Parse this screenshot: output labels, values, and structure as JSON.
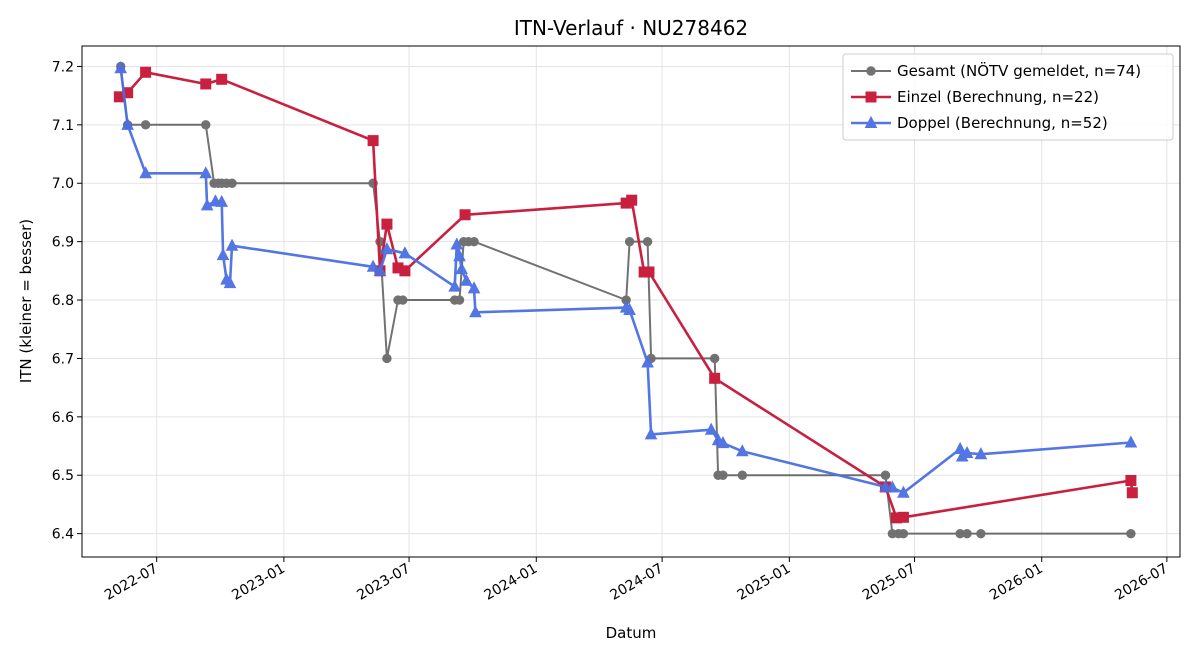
{
  "chart_data": {
    "type": "line",
    "title": "ITN-Verlauf · NU278462",
    "xlabel": "Datum",
    "ylabel": "ITN  (kleiner = besser)",
    "x_axis": "date",
    "xlim": [
      "2022-03-15",
      "2026-07-20"
    ],
    "ylim": [
      6.36,
      7.235
    ],
    "x_ticks": [
      "2022-07-01",
      "2023-01-01",
      "2023-07-01",
      "2024-01-01",
      "2024-07-01",
      "2025-01-01",
      "2025-07-01",
      "2026-01-01",
      "2026-07-01"
    ],
    "x_tick_labels": [
      "2022-07",
      "2023-01",
      "2023-07",
      "2024-01",
      "2024-07",
      "2025-01",
      "2025-07",
      "2026-01",
      "2026-07"
    ],
    "y_ticks": [
      6.4,
      6.5,
      6.6,
      6.7,
      6.8,
      6.9,
      7.0,
      7.1,
      7.2
    ],
    "y_tick_labels": [
      "6.4",
      "6.5",
      "6.6",
      "6.7",
      "6.8",
      "6.9",
      "7.0",
      "7.1",
      "7.2"
    ],
    "grid": true,
    "legend_position": "top-right",
    "series": [
      {
        "name": "Gesamt (NÖTV gemeldet, n=74)",
        "color": "#444444",
        "marker": "circle",
        "points": [
          [
            "2022-05-10",
            7.2
          ],
          [
            "2022-05-20",
            7.1
          ],
          [
            "2022-06-15",
            7.1
          ],
          [
            "2022-09-10",
            7.1
          ],
          [
            "2022-09-22",
            7.0
          ],
          [
            "2022-09-28",
            7.0
          ],
          [
            "2022-10-03",
            7.0
          ],
          [
            "2022-10-10",
            7.0
          ],
          [
            "2022-10-18",
            7.0
          ],
          [
            "2023-05-10",
            7.0
          ],
          [
            "2023-05-20",
            6.9
          ],
          [
            "2023-05-30",
            6.7
          ],
          [
            "2023-06-15",
            6.8
          ],
          [
            "2023-06-22",
            6.8
          ],
          [
            "2023-09-05",
            6.8
          ],
          [
            "2023-09-12",
            6.8
          ],
          [
            "2023-09-18",
            6.9
          ],
          [
            "2023-09-25",
            6.9
          ],
          [
            "2023-10-03",
            6.9
          ],
          [
            "2024-05-10",
            6.8
          ],
          [
            "2024-05-15",
            6.9
          ],
          [
            "2024-06-10",
            6.9
          ],
          [
            "2024-06-15",
            6.7
          ],
          [
            "2024-09-15",
            6.7
          ],
          [
            "2024-09-20",
            6.5
          ],
          [
            "2024-09-27",
            6.5
          ],
          [
            "2024-10-25",
            6.5
          ],
          [
            "2025-05-20",
            6.5
          ],
          [
            "2025-05-30",
            6.4
          ],
          [
            "2025-06-08",
            6.4
          ],
          [
            "2025-06-15",
            6.4
          ],
          [
            "2025-09-05",
            6.4
          ],
          [
            "2025-09-15",
            6.4
          ],
          [
            "2025-10-05",
            6.4
          ],
          [
            "2026-05-10",
            6.4
          ]
        ]
      },
      {
        "name": "Einzel (Berechnung, n=22)",
        "color": "#c8203e",
        "marker": "square",
        "points": [
          [
            "2022-05-08",
            7.148
          ],
          [
            "2022-05-20",
            7.155
          ],
          [
            "2022-06-15",
            7.19
          ],
          [
            "2022-09-10",
            7.17
          ],
          [
            "2022-10-03",
            7.178
          ],
          [
            "2023-05-10",
            7.073
          ],
          [
            "2023-05-20",
            6.85
          ],
          [
            "2023-05-30",
            6.93
          ],
          [
            "2023-06-15",
            6.855
          ],
          [
            "2023-06-25",
            6.85
          ],
          [
            "2023-09-20",
            6.946
          ],
          [
            "2024-05-10",
            6.966
          ],
          [
            "2024-05-18",
            6.971
          ],
          [
            "2024-06-05",
            6.848
          ],
          [
            "2024-06-12",
            6.848
          ],
          [
            "2024-09-15",
            6.666
          ],
          [
            "2025-05-20",
            6.48
          ],
          [
            "2025-06-05",
            6.427
          ],
          [
            "2025-06-15",
            6.428
          ],
          [
            "2026-05-10",
            6.491
          ],
          [
            "2026-05-12",
            6.47
          ]
        ]
      },
      {
        "name": "Doppel (Berechnung, n=52)",
        "color": "#4a6fe3",
        "marker": "triangle",
        "points": [
          [
            "2022-05-10",
            7.197
          ],
          [
            "2022-05-20",
            7.1
          ],
          [
            "2022-06-15",
            7.017
          ],
          [
            "2022-09-10",
            7.017
          ],
          [
            "2022-09-12",
            6.962
          ],
          [
            "2022-09-24",
            6.969
          ],
          [
            "2022-10-03",
            6.968
          ],
          [
            "2022-10-05",
            6.877
          ],
          [
            "2022-10-10",
            6.835
          ],
          [
            "2022-10-15",
            6.829
          ],
          [
            "2022-10-18",
            6.893
          ],
          [
            "2023-05-10",
            6.857
          ],
          [
            "2023-05-20",
            6.85
          ],
          [
            "2023-05-30",
            6.887
          ],
          [
            "2023-06-25",
            6.88
          ],
          [
            "2023-09-05",
            6.823
          ],
          [
            "2023-09-08",
            6.895
          ],
          [
            "2023-09-12",
            6.875
          ],
          [
            "2023-09-15",
            6.853
          ],
          [
            "2023-09-22",
            6.833
          ],
          [
            "2023-10-03",
            6.82
          ],
          [
            "2023-10-05",
            6.779
          ],
          [
            "2024-05-10",
            6.787
          ],
          [
            "2024-05-15",
            6.783
          ],
          [
            "2024-06-10",
            6.693
          ],
          [
            "2024-06-15",
            6.57
          ],
          [
            "2024-09-10",
            6.578
          ],
          [
            "2024-09-20",
            6.56
          ],
          [
            "2024-09-27",
            6.555
          ],
          [
            "2024-10-25",
            6.541
          ],
          [
            "2025-05-20",
            6.48
          ],
          [
            "2025-05-30",
            6.479
          ],
          [
            "2025-06-15",
            6.47
          ],
          [
            "2025-09-05",
            6.545
          ],
          [
            "2025-09-08",
            6.532
          ],
          [
            "2025-09-15",
            6.538
          ],
          [
            "2025-10-05",
            6.536
          ],
          [
            "2026-05-10",
            6.556
          ]
        ]
      }
    ]
  }
}
